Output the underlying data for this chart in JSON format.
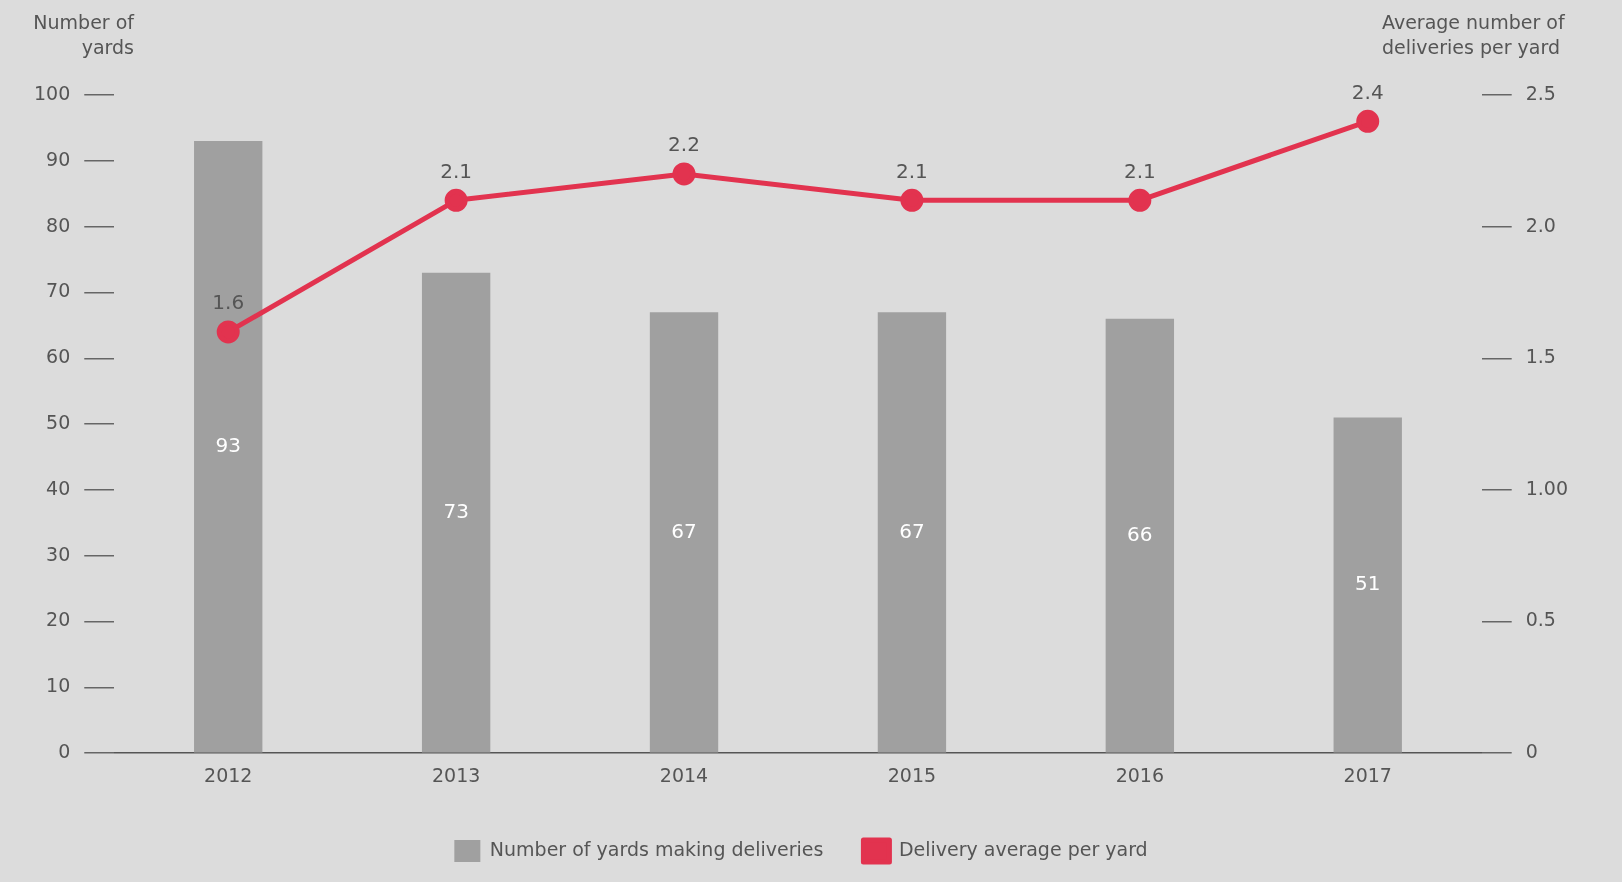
{
  "chart_data": {
    "type": "bar",
    "ylabel": "Number of yards",
    "y2label": "Average number of deliveries per yard",
    "categories": [
      "2012",
      "2013",
      "2014",
      "2015",
      "2016",
      "2017"
    ],
    "series": [
      {
        "name": "Number of yards making deliveries",
        "color": "#a0a0a0",
        "values": [
          93,
          73,
          67,
          67,
          66,
          51
        ]
      },
      {
        "name": "Delivery average per yard",
        "type": "line",
        "axis": "y2",
        "color": "#e2334f",
        "marker": "circle",
        "values": [
          1.6,
          2.1,
          2.2,
          2.1,
          2.1,
          2.4
        ]
      }
    ],
    "ylim": [
      0,
      100
    ],
    "yticks": [
      0,
      10,
      20,
      30,
      40,
      50,
      60,
      70,
      80,
      90,
      100
    ],
    "y2lim": [
      0,
      2.5
    ],
    "y2ticks": [
      0,
      {
        "value": 0.5,
        "label": "0.5"
      },
      {
        "value": 1,
        "label": "1.00"
      },
      {
        "value": 1.5,
        "label": "1.5"
      },
      {
        "value": 2,
        "label": "2.0"
      },
      {
        "value": 2.5,
        "label": "2.5"
      }
    ],
    "data_labels": true,
    "legend": "bottom",
    "grid": false
  }
}
